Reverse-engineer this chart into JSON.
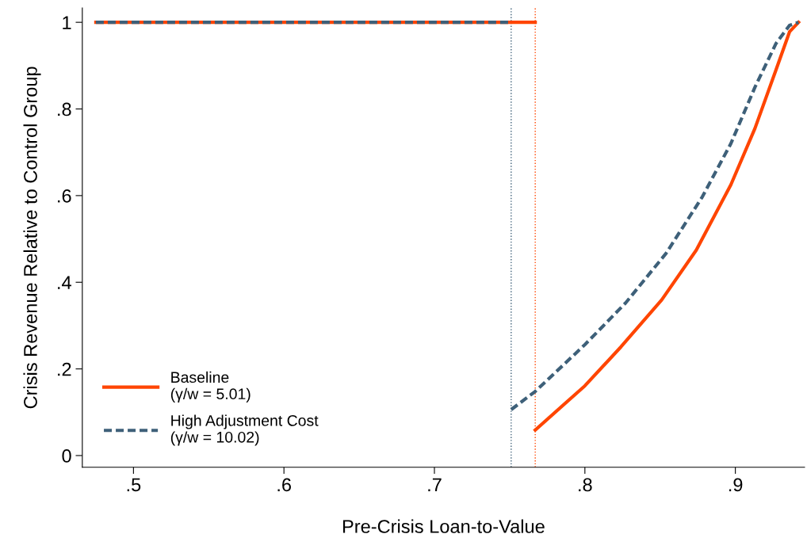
{
  "chart_data": {
    "type": "line",
    "xlabel": "Pre-Crisis Loan-to-Value",
    "ylabel": "Crisis Revenue Relative to Control Group",
    "xlim": [
      0.466,
      0.946
    ],
    "ylim": [
      -0.027,
      1.033
    ],
    "xticks": [
      {
        "value": 0.5,
        "label": ".5"
      },
      {
        "value": 0.6,
        "label": ".6"
      },
      {
        "value": 0.7,
        "label": ".7"
      },
      {
        "value": 0.8,
        "label": ".8"
      },
      {
        "value": 0.9,
        "label": ".9"
      }
    ],
    "yticks": [
      0,
      {
        "value": 0.2,
        "label": ".2"
      },
      {
        "value": 0.4,
        "label": ".4"
      },
      {
        "value": 0.6,
        "label": ".6"
      },
      {
        "value": 0.8,
        "label": ".8"
      },
      1
    ],
    "grid": false,
    "legend": "bottom left",
    "marker": "none",
    "series": [
      {
        "color": "#ff4500",
        "line_style": "solid",
        "x": [
          0.475,
          0.767
        ],
        "values": [
          1,
          1
        ]
      },
      {
        "color": "#3e6079",
        "line_style": "dashed",
        "x": [
          0.475,
          0.751
        ],
        "values": [
          1,
          1
        ]
      },
      {
        "name": "Baseline\n(γ/w = 5.01)",
        "color": "#ff4500",
        "line_style": "solid",
        "x": [
          0.767,
          0.8,
          0.824,
          0.851,
          0.874,
          0.897,
          0.913,
          0.927,
          0.936,
          0.942
        ],
        "values": [
          0.059,
          0.161,
          0.251,
          0.359,
          0.474,
          0.625,
          0.755,
          0.89,
          0.978,
          1
        ]
      },
      {
        "name": "High Adjustment Cost\n(γ/w = 10.02)",
        "color": "#3e6079",
        "line_style": "dashed",
        "x": [
          0.751,
          0.767,
          0.8,
          0.827,
          0.854,
          0.878,
          0.897,
          0.913,
          0.927,
          0.936,
          0.942
        ],
        "values": [
          0.106,
          0.148,
          0.256,
          0.352,
          0.467,
          0.597,
          0.72,
          0.85,
          0.951,
          0.993,
          1
        ]
      }
    ],
    "ref_lines": [
      {
        "axis": "x",
        "value": 0.751,
        "color": "#3e6079",
        "line_style": "dotted"
      },
      {
        "axis": "x",
        "value": 0.767,
        "color": "#ff4500",
        "line_style": "dotted"
      }
    ]
  }
}
